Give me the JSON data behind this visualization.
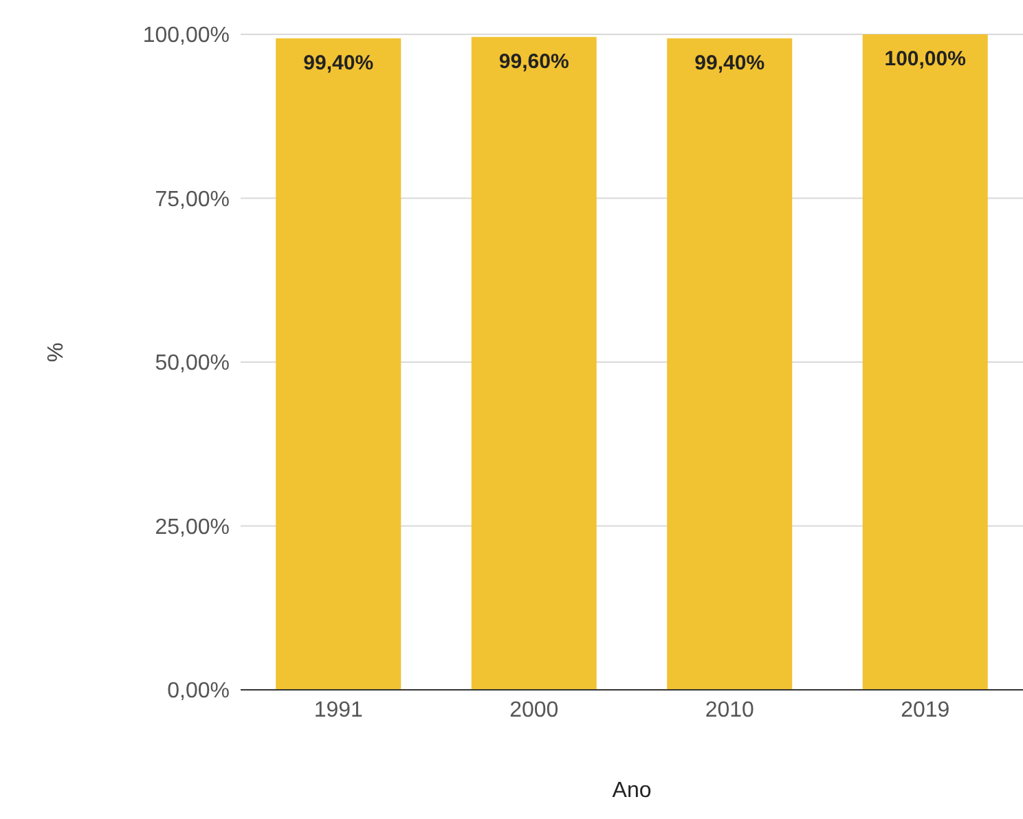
{
  "chart_data": {
    "type": "bar",
    "xlabel": "Ano",
    "ylabel": "%",
    "categories": [
      "1991",
      "2000",
      "2010",
      "2019"
    ],
    "values": [
      99.4,
      99.6,
      99.4,
      100
    ],
    "value_labels": [
      "99,40%",
      "99,60%",
      "99,40%",
      "100,00%"
    ],
    "color": "#f1c232",
    "ylim": [
      0,
      100
    ],
    "yticks": [
      {
        "value": 0,
        "label": "0,00%"
      },
      {
        "value": 25,
        "label": "25,00%"
      },
      {
        "value": 50,
        "label": "50,00%"
      },
      {
        "value": 75,
        "label": "75,00%"
      },
      {
        "value": 100,
        "label": "100,00%"
      }
    ],
    "grid": "y"
  }
}
